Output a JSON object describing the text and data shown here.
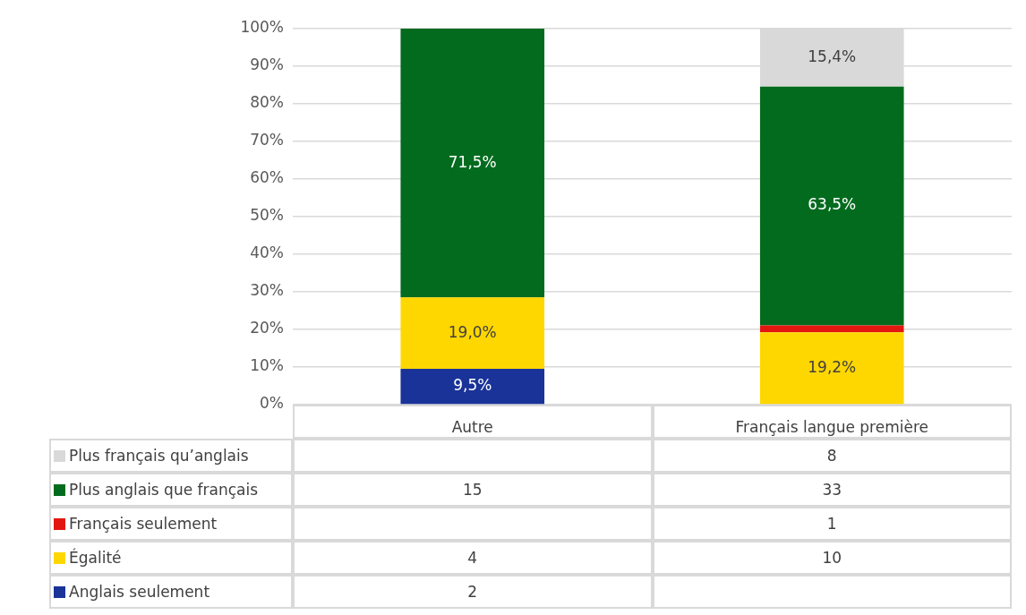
{
  "chart_data": {
    "type": "bar",
    "stacked": true,
    "categories": [
      "Autre",
      "Français langue première"
    ],
    "series": [
      {
        "name": "Anglais seulement",
        "color": "#1a3399",
        "values": [
          9.5,
          0
        ],
        "value_labels": [
          "9,5%",
          null
        ]
      },
      {
        "name": "Égalité",
        "color": "#ffd700",
        "values": [
          19.0,
          19.2
        ],
        "value_labels": [
          "19,0%",
          "19,2%"
        ]
      },
      {
        "name": "Français seulement",
        "color": "#e2170f",
        "values": [
          0,
          1.9
        ],
        "value_labels": [
          null,
          null
        ]
      },
      {
        "name": "Plus anglais que français",
        "color": "#036b1e",
        "values": [
          71.5,
          63.5
        ],
        "value_labels": [
          "71,5%",
          "63,5%"
        ]
      },
      {
        "name": "Plus français qu’anglais",
        "color": "#d9d9d9",
        "values": [
          0,
          15.4
        ],
        "value_labels": [
          null,
          "15,4%"
        ]
      }
    ],
    "ylim": [
      0,
      100
    ],
    "yticks": [
      {
        "value": 0,
        "label": "0%"
      },
      {
        "value": 10,
        "label": "10%"
      },
      {
        "value": 20,
        "label": "20%"
      },
      {
        "value": 30,
        "label": "30%"
      },
      {
        "value": 40,
        "label": "40%"
      },
      {
        "value": 50,
        "label": "50%"
      },
      {
        "value": 60,
        "label": "60%"
      },
      {
        "value": 70,
        "label": "70%"
      },
      {
        "value": 80,
        "label": "80%"
      },
      {
        "value": 90,
        "label": "90%"
      },
      {
        "value": 100,
        "label": "100%"
      }
    ],
    "grid": "y",
    "legend": "bottom",
    "annotations": [
      "8",
      "15",
      "33",
      "1",
      "4",
      "10",
      "2"
    ]
  }
}
